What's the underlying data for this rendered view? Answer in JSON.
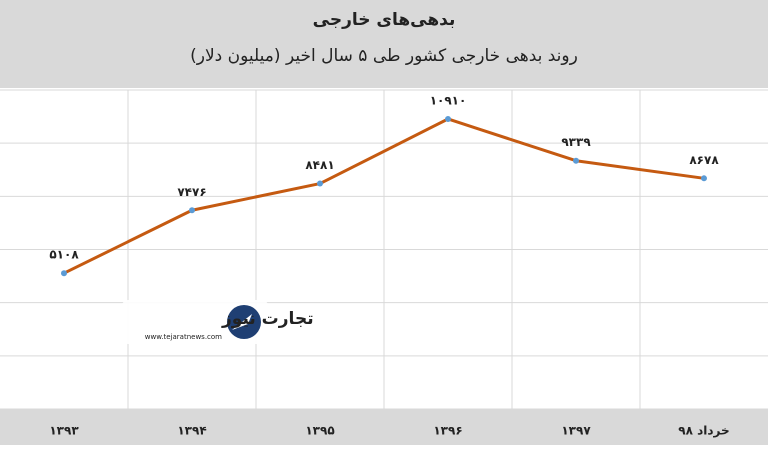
{
  "chart_data": {
    "type": "line",
    "title": "بدهی‌های خارجی",
    "subtitle": "روند بدهی خارجی کشور طی ۵ سال اخیر (میلیون دلار)",
    "categories": [
      "۱۳۹۳",
      "۱۳۹۴",
      "۱۳۹۵",
      "۱۳۹۶",
      "۱۳۹۷",
      "خرداد ۹۸"
    ],
    "series": [
      {
        "color": "#c55a11",
        "marker_color": "#5b9bd5",
        "values": [
          5108,
          7476,
          8481,
          10910,
          9339,
          8678
        ],
        "value_labels": [
          "۵۱۰۸",
          "۷۴۷۶",
          "۸۴۸۱",
          "۱۰۹۱۰",
          "۹۳۳۹",
          "۸۶۷۸"
        ]
      }
    ],
    "ylim": [
      0,
      12000
    ],
    "yticks": [
      0,
      2000,
      4000,
      6000,
      8000,
      10000,
      12000
    ],
    "grid": true,
    "watermark": {
      "name": "تجارت نیوز",
      "url": "www.tejaratnews.com"
    }
  }
}
